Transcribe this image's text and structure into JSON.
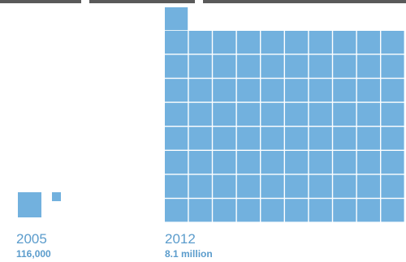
{
  "chart_data": {
    "type": "unit-grid",
    "series": [
      {
        "year": "2005",
        "value_label": "116,000",
        "value": 116000,
        "color": "#72b1de"
      },
      {
        "year": "2012",
        "value_label": "8.1 million",
        "value": 8100000,
        "color": "#72b1de"
      }
    ],
    "title": "",
    "xlabel": "",
    "ylabel": ""
  }
}
